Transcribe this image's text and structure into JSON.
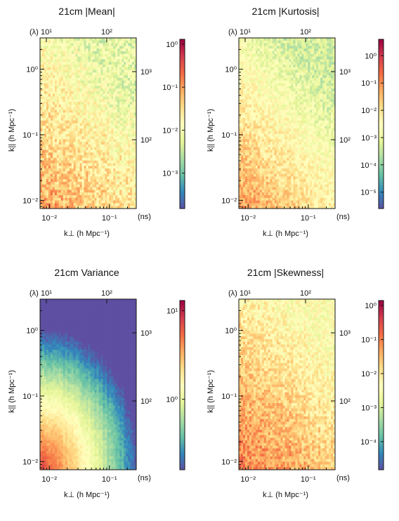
{
  "chart_data": [
    {
      "type": "heatmap",
      "title": "21cm |Mean|",
      "xlabel": "k⊥ (h Mpc⁻¹)",
      "ylabel": "k|| (h Mpc⁻¹)",
      "top_axis_label": "(λ)",
      "right_axis_label": "(ns)",
      "x_scale": "log",
      "y_scale": "log",
      "xlim": [
        0.007,
        0.28
      ],
      "ylim": [
        0.0075,
        3.0
      ],
      "x_ticks": [
        {
          "value": 0.01,
          "label": "10⁻²"
        },
        {
          "value": 0.1,
          "label": "10⁻¹"
        }
      ],
      "y_ticks": [
        {
          "value": 0.01,
          "label": "10⁻²"
        },
        {
          "value": 0.1,
          "label": "10⁻¹"
        },
        {
          "value": 1,
          "label": "10⁰"
        }
      ],
      "top_ticks": [
        {
          "label": "10¹"
        },
        {
          "label": "10²"
        }
      ],
      "right_ticks": [
        {
          "label": "10²"
        },
        {
          "label": "10³"
        }
      ],
      "colorbar": {
        "scale": "log",
        "range": [
          0.00015,
          1.3
        ],
        "colormap": "Spectral_r",
        "ticks": [
          {
            "value": 1,
            "label": "10⁰"
          },
          {
            "value": 0.1,
            "label": "10⁻¹"
          },
          {
            "value": 0.01,
            "label": "10⁻²"
          },
          {
            "value": 0.001,
            "label": "10⁻³"
          }
        ]
      },
      "pattern": {
        "base_low": -1.0,
        "base_high": -2.2,
        "noise": 0.42,
        "floor": -3.2,
        "seed": 11
      }
    },
    {
      "type": "heatmap",
      "title": "21cm |Kurtosis|",
      "xlabel": "k⊥ (h Mpc⁻¹)",
      "ylabel": "k|| (h Mpc⁻¹)",
      "top_axis_label": "(λ)",
      "right_axis_label": "(ns)",
      "x_scale": "log",
      "y_scale": "log",
      "xlim": [
        0.007,
        0.28
      ],
      "ylim": [
        0.0075,
        3.0
      ],
      "x_ticks": [
        {
          "value": 0.01,
          "label": "10⁻²"
        },
        {
          "value": 0.1,
          "label": "10⁻¹"
        }
      ],
      "y_ticks": [
        {
          "value": 0.01,
          "label": "10⁻²"
        },
        {
          "value": 0.1,
          "label": "10⁻¹"
        },
        {
          "value": 1,
          "label": "10⁰"
        }
      ],
      "top_ticks": [
        {
          "label": "10¹"
        },
        {
          "label": "10²"
        }
      ],
      "right_ticks": [
        {
          "label": "10²"
        },
        {
          "label": "10³"
        }
      ],
      "colorbar": {
        "scale": "log",
        "range": [
          2.5e-06,
          4.0
        ],
        "colormap": "Spectral_r",
        "ticks": [
          {
            "value": 1,
            "label": "10⁰"
          },
          {
            "value": 0.1,
            "label": "10⁻¹"
          },
          {
            "value": 0.01,
            "label": "10⁻²"
          },
          {
            "value": 0.001,
            "label": "10⁻³"
          },
          {
            "value": 0.0001,
            "label": "10⁻⁴"
          },
          {
            "value": 1e-05,
            "label": "10⁻⁵"
          }
        ]
      },
      "pattern": {
        "base_low": -1.1,
        "base_high": -3.3,
        "noise": 0.5,
        "floor": -4.2,
        "seed": 23
      }
    },
    {
      "type": "heatmap",
      "title": "21cm Variance",
      "xlabel": "k⊥ (h Mpc⁻¹)",
      "ylabel": "k|| (h Mpc⁻¹)",
      "top_axis_label": "(λ)",
      "right_axis_label": "(ns)",
      "x_scale": "log",
      "y_scale": "log",
      "xlim": [
        0.007,
        0.28
      ],
      "ylim": [
        0.0075,
        3.0
      ],
      "x_ticks": [
        {
          "value": 0.01,
          "label": "10⁻²"
        },
        {
          "value": 0.1,
          "label": "10⁻¹"
        }
      ],
      "y_ticks": [
        {
          "value": 0.01,
          "label": "10⁻²"
        },
        {
          "value": 0.1,
          "label": "10⁻¹"
        },
        {
          "value": 1,
          "label": "10⁰"
        }
      ],
      "top_ticks": [
        {
          "label": "10¹"
        },
        {
          "label": "10²"
        }
      ],
      "right_ticks": [
        {
          "label": "10²"
        },
        {
          "label": "10³"
        }
      ],
      "colorbar": {
        "scale": "log",
        "range": [
          0.16,
          13
        ],
        "colormap": "Spectral_r",
        "ticks": [
          {
            "value": 10,
            "label": "10¹"
          },
          {
            "value": 1,
            "label": "10⁰"
          }
        ]
      },
      "pattern": {
        "kind": "variance",
        "noise": 0.12,
        "seed": 37
      }
    },
    {
      "type": "heatmap",
      "title": "21cm |Skewness|",
      "xlabel": "k⊥ (h Mpc⁻¹)",
      "ylabel": "k|| (h Mpc⁻¹)",
      "top_axis_label": "(λ)",
      "right_axis_label": "(ns)",
      "x_scale": "log",
      "y_scale": "log",
      "xlim": [
        0.007,
        0.28
      ],
      "ylim": [
        0.0075,
        3.0
      ],
      "x_ticks": [
        {
          "value": 0.01,
          "label": "10⁻²"
        },
        {
          "value": 0.1,
          "label": "10⁻¹"
        }
      ],
      "y_ticks": [
        {
          "value": 0.01,
          "label": "10⁻²"
        },
        {
          "value": 0.1,
          "label": "10⁻¹"
        },
        {
          "value": 1,
          "label": "10⁰"
        }
      ],
      "top_ticks": [
        {
          "label": "10¹"
        },
        {
          "label": "10²"
        }
      ],
      "right_ticks": [
        {
          "label": "10²"
        },
        {
          "label": "10³"
        }
      ],
      "colorbar": {
        "scale": "log",
        "range": [
          1.5e-05,
          1.4
        ],
        "colormap": "Spectral_r",
        "ticks": [
          {
            "value": 1,
            "label": "10⁰"
          },
          {
            "value": 0.1,
            "label": "10⁻¹"
          },
          {
            "value": 0.01,
            "label": "10⁻²"
          },
          {
            "value": 0.001,
            "label": "10⁻³"
          },
          {
            "value": 0.0001,
            "label": "10⁻⁴"
          }
        ]
      },
      "pattern": {
        "base_low": -1.0,
        "base_high": -2.4,
        "noise": 0.45,
        "floor": -3.6,
        "seed": 51
      }
    }
  ],
  "colors": {
    "spectral_r": [
      "#5e4fa2",
      "#3288bd",
      "#66c2a5",
      "#abdda4",
      "#e6f598",
      "#ffffbf",
      "#fee08b",
      "#fdae61",
      "#f46d43",
      "#d53e4f",
      "#9e0142"
    ],
    "axis": "#111111"
  }
}
